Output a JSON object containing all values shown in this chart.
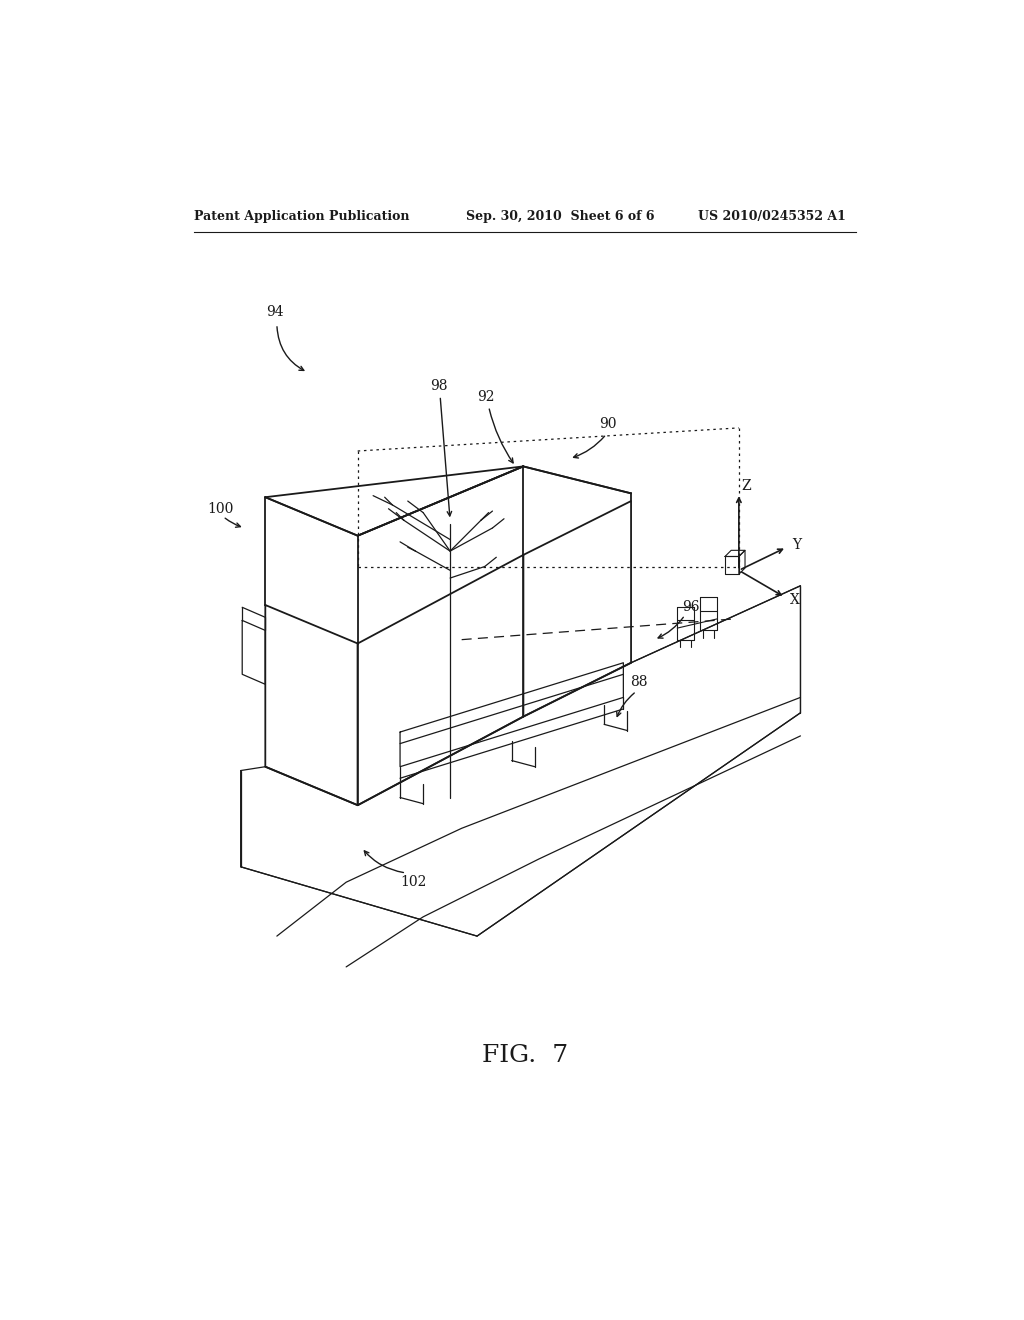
{
  "background_color": "#ffffff",
  "header_left": "Patent Application Publication",
  "header_mid": "Sep. 30, 2010  Sheet 6 of 6",
  "header_right": "US 2010/0245352 A1",
  "fig_label": "FIG.  7",
  "color": "#1a1a1a"
}
